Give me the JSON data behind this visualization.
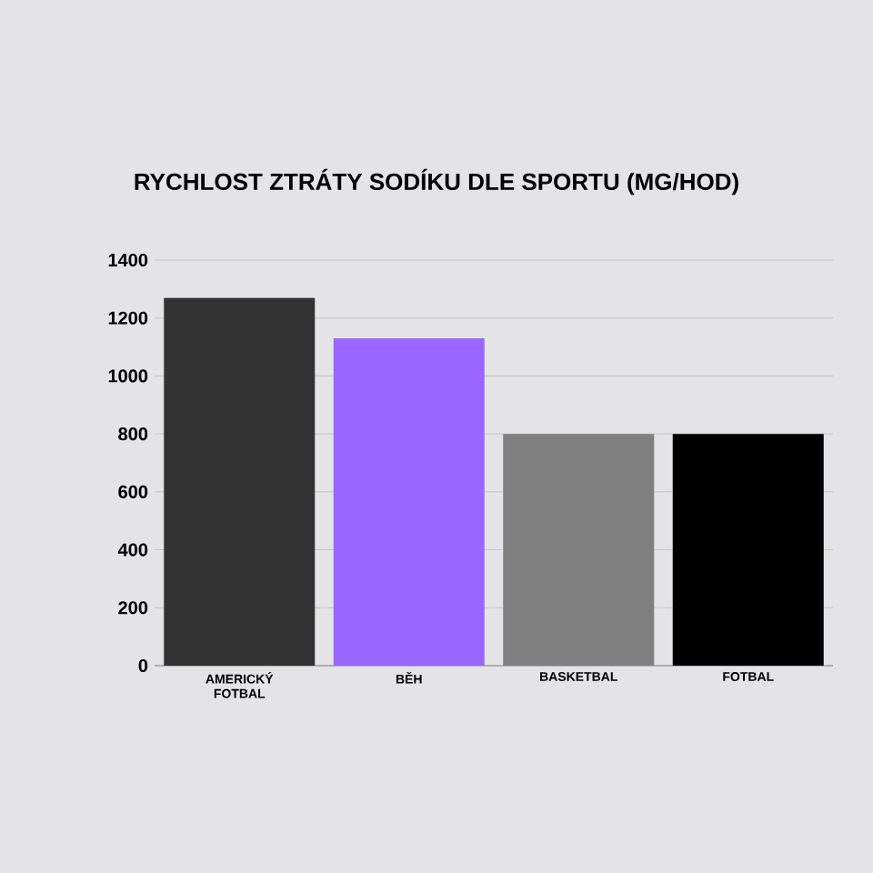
{
  "chart_data": {
    "type": "bar",
    "title": "RYCHLOST ZTRÁTY SODÍKU DLE SPORTU (MG/HOD)",
    "categories": [
      "AMERICKÝ FOTBAL",
      "BĚH",
      "BASKETBAL",
      "FOTBAL"
    ],
    "values": [
      1270,
      1130,
      800,
      800
    ],
    "colors": [
      "#333333",
      "#9966ff",
      "#808080",
      "#000000"
    ],
    "ylim": [
      0,
      1400
    ],
    "yticks": [
      0,
      200,
      400,
      600,
      800,
      1000,
      1200,
      1400
    ],
    "grid": "y"
  }
}
